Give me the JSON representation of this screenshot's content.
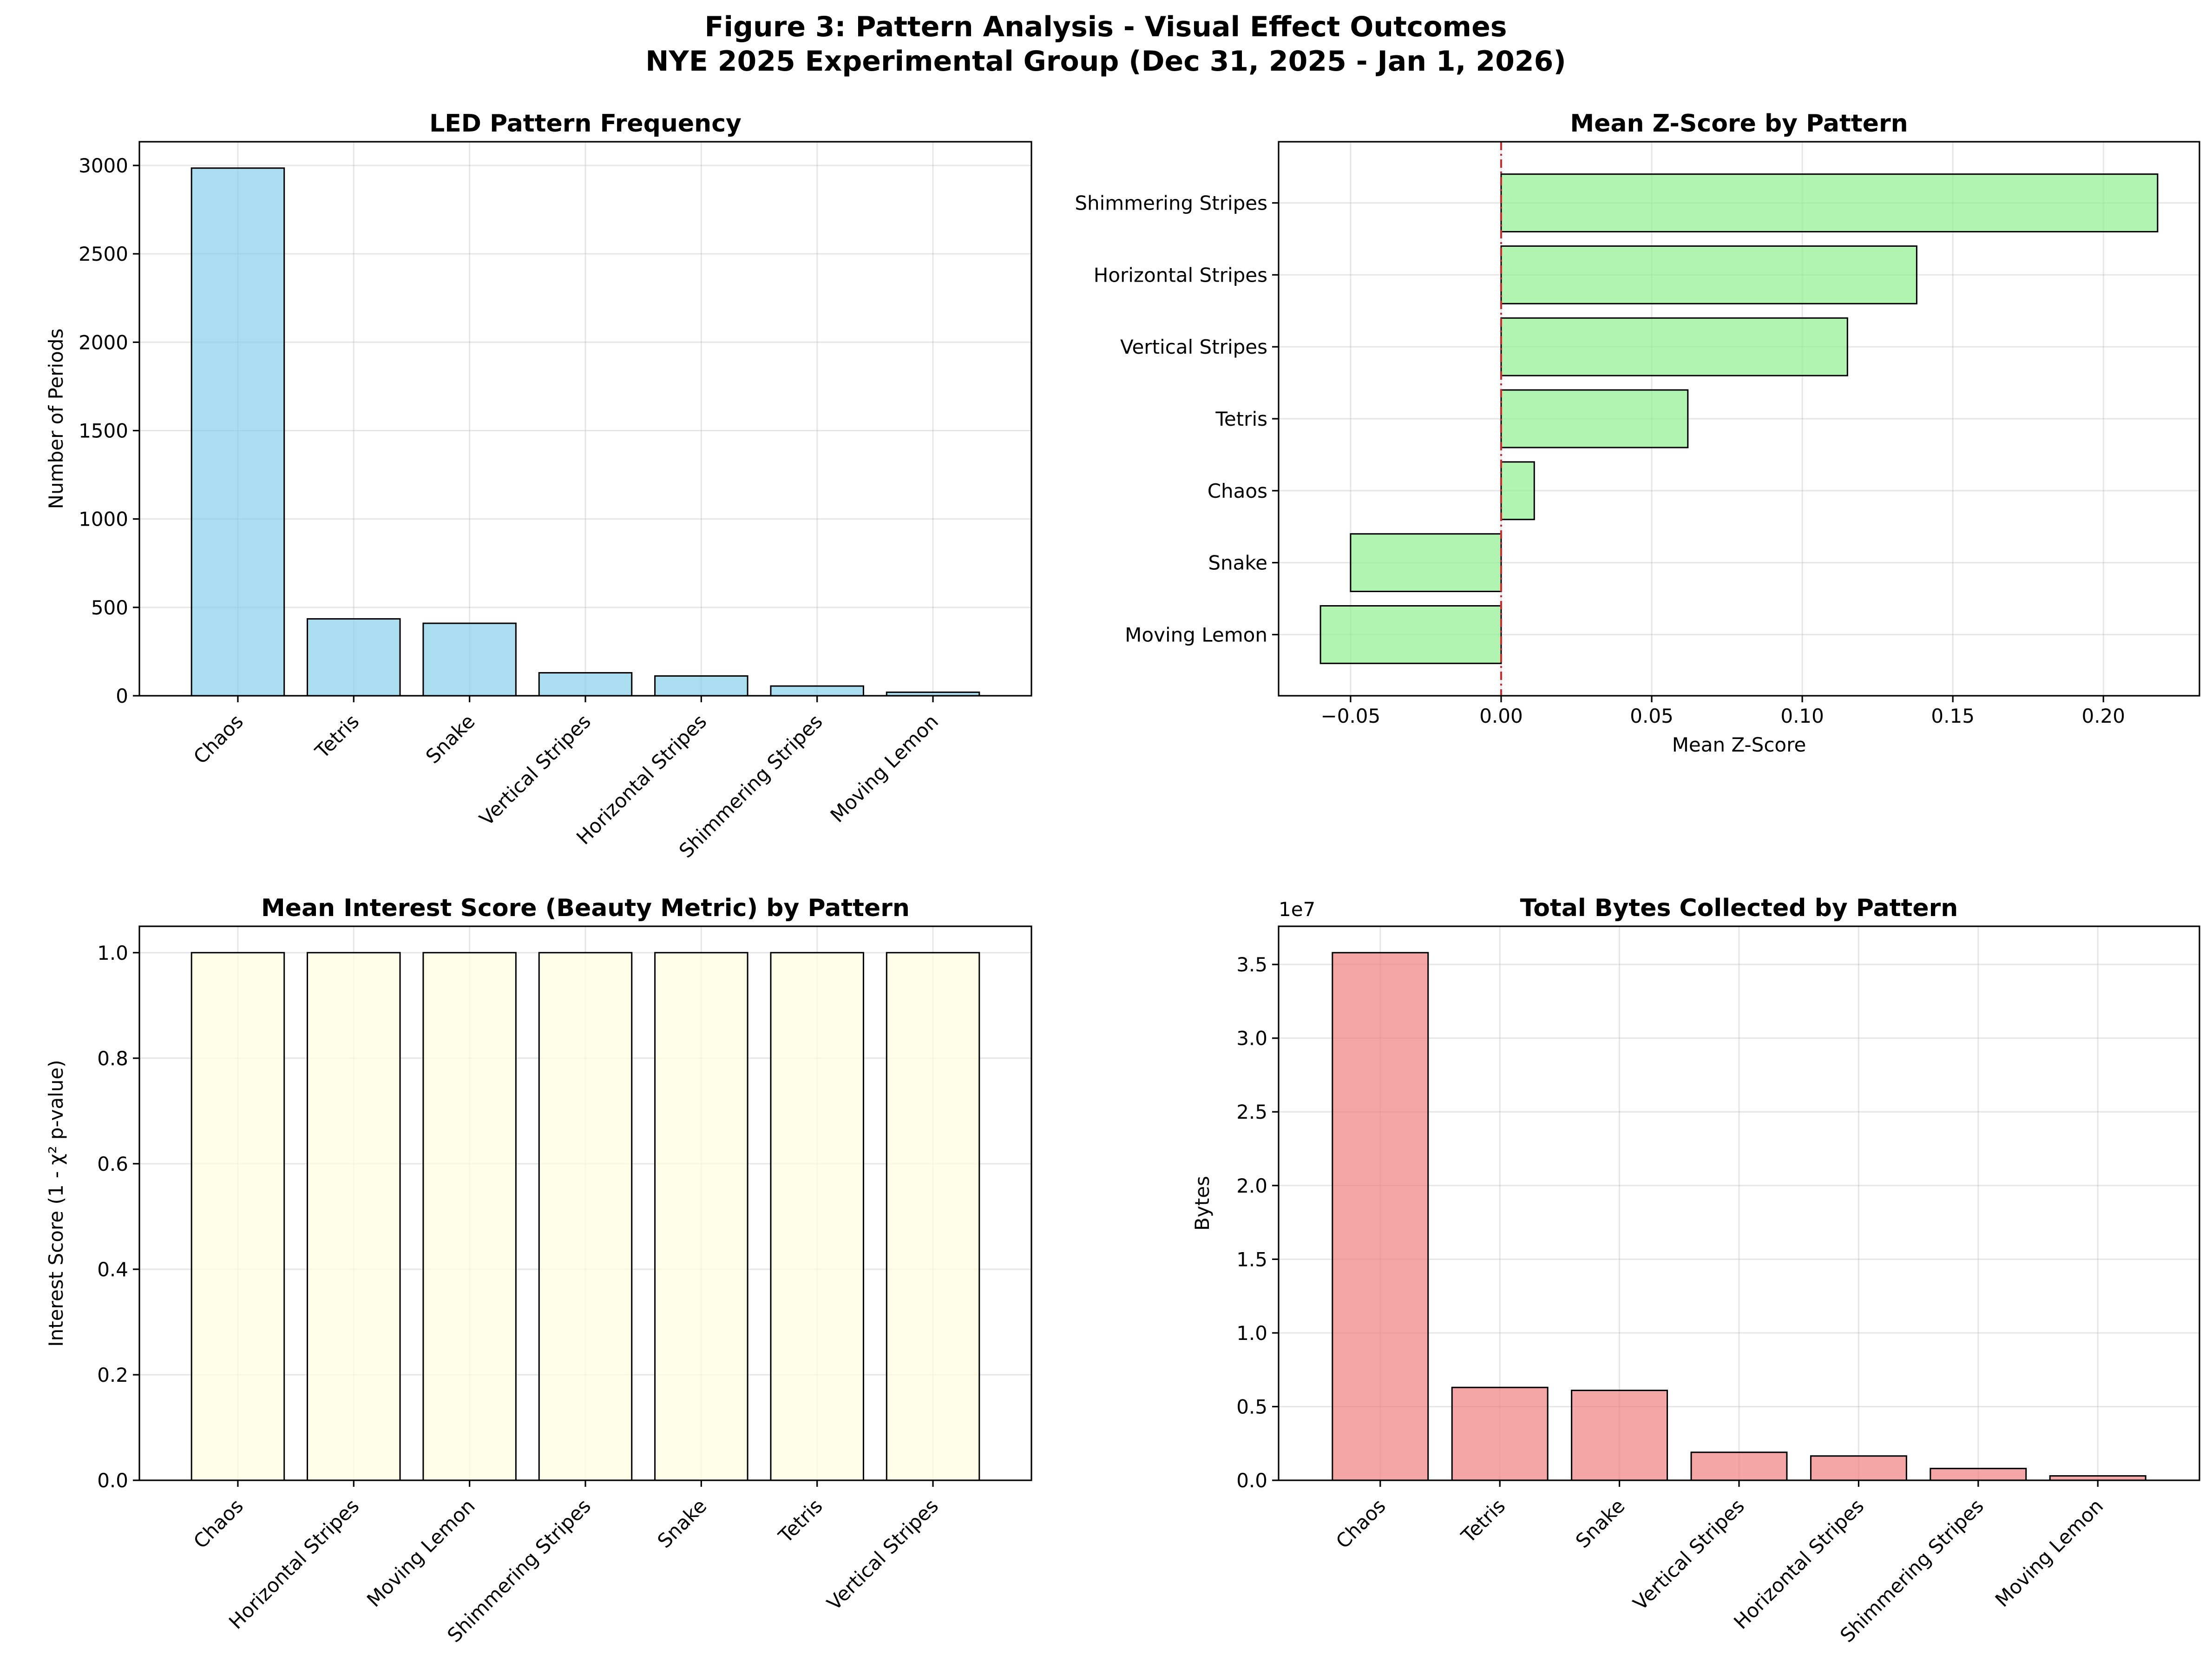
{
  "figure": {
    "title_line1": "Figure 3: Pattern Analysis - Visual Effect Outcomes",
    "title_line2": "NYE 2025 Experimental Group (Dec 31, 2025 - Jan 1, 2026)"
  },
  "chart_data": [
    {
      "type": "bar",
      "title": "LED Pattern Frequency",
      "xlabel": "",
      "ylabel": "Number of Periods",
      "categories": [
        "Chaos",
        "Tetris",
        "Snake",
        "Vertical Stripes",
        "Horizontal Stripes",
        "Shimmering Stripes",
        "Moving Lemon"
      ],
      "values": [
        2985,
        435,
        410,
        130,
        112,
        55,
        20
      ],
      "ylim": [
        0,
        3134
      ],
      "yticks": [
        0,
        500,
        1000,
        1500,
        2000,
        2500,
        3000
      ],
      "ytick_labels": [
        "0",
        "500",
        "1000",
        "1500",
        "2000",
        "2500",
        "3000"
      ],
      "color": "#87CEEB",
      "grid": true
    },
    {
      "type": "bar",
      "orientation": "horizontal",
      "title": "Mean Z-Score by Pattern",
      "xlabel": "Mean Z-Score",
      "ylabel": "",
      "categories": [
        "Moving Lemon",
        "Snake",
        "Chaos",
        "Tetris",
        "Vertical Stripes",
        "Horizontal Stripes",
        "Shimmering Stripes"
      ],
      "values": [
        -0.06,
        -0.05,
        0.011,
        0.062,
        0.115,
        0.138,
        0.218
      ],
      "xlim": [
        -0.0739,
        0.2319
      ],
      "xticks": [
        -0.05,
        0,
        0.05,
        0.1,
        0.15,
        0.2
      ],
      "xtick_labels": [
        "−0.05",
        "0.00",
        "0.05",
        "0.10",
        "0.15",
        "0.20"
      ],
      "reference_line": 0,
      "color": "#90EE90",
      "grid": true
    },
    {
      "type": "bar",
      "title": "Mean Interest Score (Beauty Metric) by Pattern",
      "xlabel": "",
      "ylabel": "Interest Score (1 - χ² p-value)",
      "categories": [
        "Chaos",
        "Horizontal Stripes",
        "Moving Lemon",
        "Shimmering Stripes",
        "Snake",
        "Tetris",
        "Vertical Stripes"
      ],
      "values": [
        1.0,
        1.0,
        1.0,
        1.0,
        1.0,
        1.0,
        1.0
      ],
      "ylim": [
        0,
        1.05
      ],
      "yticks": [
        0,
        0.2,
        0.4,
        0.6,
        0.8,
        1.0
      ],
      "ytick_labels": [
        "0.0",
        "0.2",
        "0.4",
        "0.6",
        "0.8",
        "1.0"
      ],
      "color": "#FFFFE0",
      "grid": true
    },
    {
      "type": "bar",
      "title": "Total Bytes Collected by Pattern",
      "xlabel": "",
      "ylabel": "Bytes",
      "offset_label": "1e7",
      "categories": [
        "Chaos",
        "Tetris",
        "Snake",
        "Vertical Stripes",
        "Horizontal Stripes",
        "Shimmering Stripes",
        "Moving Lemon"
      ],
      "values": [
        35800000,
        6300000,
        6100000,
        1900000,
        1650000,
        800000,
        300000
      ],
      "ylim": [
        0,
        37590000
      ],
      "yticks": [
        0,
        5000000,
        10000000,
        15000000,
        20000000,
        25000000,
        30000000,
        35000000
      ],
      "ytick_labels": [
        "0.0",
        "0.5",
        "1.0",
        "1.5",
        "2.0",
        "2.5",
        "3.0",
        "3.5"
      ],
      "color": "#F08080",
      "grid": true
    }
  ]
}
